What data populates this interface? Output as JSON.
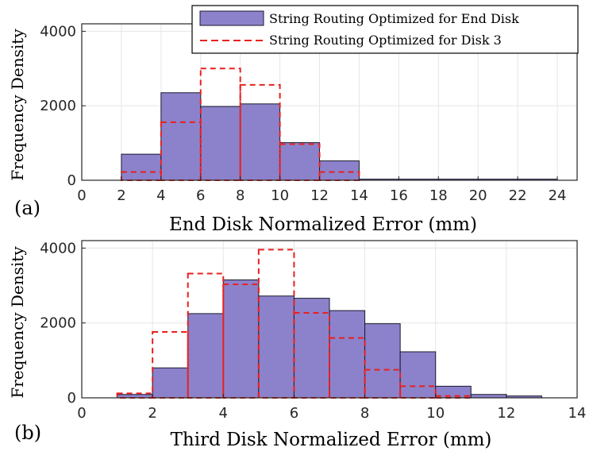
{
  "chart_data": [
    {
      "panel_label": "(a)",
      "type": "histogram",
      "xlabel": "End Disk Normalized Error (mm)",
      "ylabel": "Frequency Density",
      "xlim": [
        0,
        25
      ],
      "ylim": [
        0,
        4200
      ],
      "xticks": [
        0,
        2,
        4,
        6,
        8,
        10,
        12,
        14,
        16,
        18,
        20,
        22,
        24
      ],
      "yticks": [
        0,
        2000,
        4000
      ],
      "grid": true,
      "legend": {
        "position": "top-right",
        "entries": [
          "String Routing Optimized for End Disk",
          "String Routing Optimized for Disk 3"
        ]
      },
      "series": [
        {
          "name": "String Routing Optimized for End Disk",
          "style": "filled-bar",
          "fill": "#8c82cb",
          "stroke": "#1a1a2e",
          "bin_edges": [
            2,
            4,
            6,
            8,
            10,
            12,
            14,
            16,
            18,
            20,
            22,
            24
          ],
          "values": [
            700,
            2350,
            1980,
            2050,
            1010,
            520,
            30,
            30,
            30,
            30,
            30
          ]
        },
        {
          "name": "String Routing Optimized for Disk 3",
          "style": "dashed-outline",
          "stroke": "#e8201f",
          "bin_edges": [
            2,
            4,
            6,
            8,
            10,
            12,
            14
          ],
          "values": [
            220,
            1560,
            3000,
            2560,
            970,
            220
          ]
        }
      ]
    },
    {
      "panel_label": "(b)",
      "type": "histogram",
      "xlabel": "Third Disk Normalized Error (mm)",
      "ylabel": "Frequency Density",
      "xlim": [
        0,
        14
      ],
      "ylim": [
        0,
        4200
      ],
      "xticks": [
        0,
        2,
        4,
        6,
        8,
        10,
        12,
        14
      ],
      "yticks": [
        0,
        2000,
        4000
      ],
      "grid": true,
      "series": [
        {
          "name": "String Routing Optimized for End Disk",
          "style": "filled-bar",
          "fill": "#8c82cb",
          "stroke": "#1a1a2e",
          "bin_edges": [
            1,
            2,
            3,
            4,
            5,
            6,
            7,
            8,
            9,
            10,
            11,
            12,
            13
          ],
          "values": [
            90,
            800,
            2250,
            3150,
            2720,
            2660,
            2330,
            1980,
            1230,
            310,
            90,
            50
          ]
        },
        {
          "name": "String Routing Optimized for Disk 3",
          "style": "dashed-outline",
          "stroke": "#e8201f",
          "bin_edges": [
            1,
            2,
            3,
            4,
            5,
            6,
            7,
            8,
            9,
            10,
            11
          ],
          "values": [
            120,
            1760,
            3320,
            3030,
            3960,
            2270,
            1600,
            750,
            310,
            50
          ]
        }
      ]
    }
  ]
}
